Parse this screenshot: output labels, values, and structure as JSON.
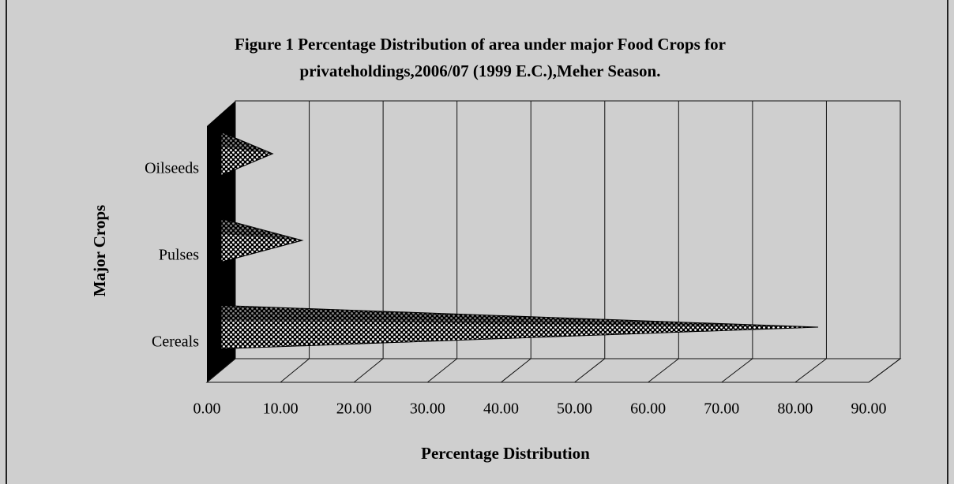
{
  "chart_data": {
    "type": "cone-bar-horizontal",
    "title": [
      "Figure 1 Percentage Distribution of area under major Food Crops for",
      "privateholdings,2006/07 (1999 E.C.),Meher Season."
    ],
    "xlabel": "Percentage Distribution",
    "ylabel": "Major Crops",
    "categories": [
      "Cereals",
      "Pulses",
      "Oilseeds"
    ],
    "values": [
      81,
      11,
      7
    ],
    "xlim": [
      0,
      90
    ],
    "xticks": [
      {
        "value": 0,
        "label": "0.00"
      },
      {
        "value": 10,
        "label": "10.00"
      },
      {
        "value": 20,
        "label": "20.00"
      },
      {
        "value": 30,
        "label": "30.00"
      },
      {
        "value": 40,
        "label": "40.00"
      },
      {
        "value": 50,
        "label": "50.00"
      },
      {
        "value": 60,
        "label": "60.00"
      },
      {
        "value": 70,
        "label": "70.00"
      },
      {
        "value": 80,
        "label": "80.00"
      },
      {
        "value": 90,
        "label": "90.00"
      }
    ],
    "grid": true,
    "color": "#000000"
  }
}
